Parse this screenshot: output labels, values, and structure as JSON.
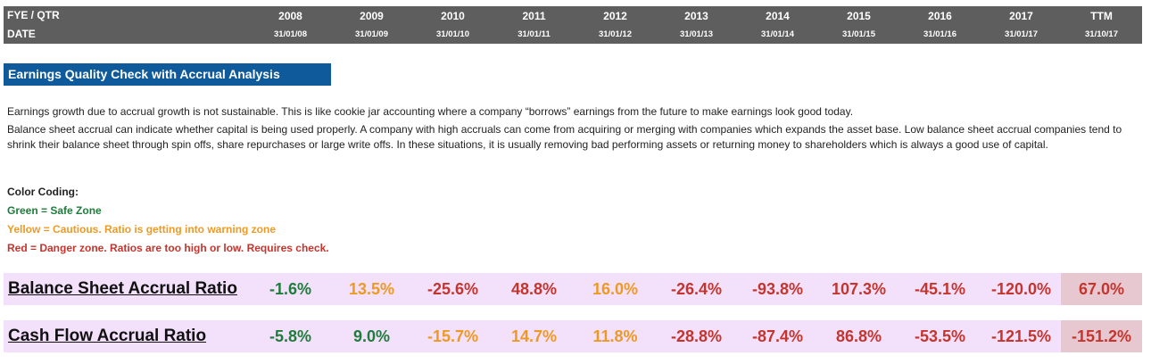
{
  "header": {
    "row1_label": "FYE / QTR",
    "row2_label": "DATE",
    "years": [
      "2008",
      "2009",
      "2010",
      "2011",
      "2012",
      "2013",
      "2014",
      "2015",
      "2016",
      "2017",
      "TTM"
    ],
    "dates": [
      "31/01/08",
      "31/01/09",
      "31/01/10",
      "31/01/11",
      "31/01/12",
      "31/01/13",
      "31/01/14",
      "31/01/15",
      "31/01/16",
      "31/01/17",
      "31/10/17"
    ]
  },
  "section": {
    "title": "Earnings Quality Check with Accrual Analysis",
    "paragraph1": "Earnings growth due to accrual growth is not sustainable. This is like cookie jar accounting where a company “borrows” earnings from the future to make earnings look good today.",
    "paragraph2": "Balance sheet accrual can indicate whether capital is being used properly. A company with high accruals can come from acquiring or merging with companies which expands the asset base. Low balance sheet accrual companies tend to shrink their balance sheet through spin offs, share repurchases or large write offs. In these situations, it is usually removing bad performing assets or returning money to shareholders which is always a good use of capital."
  },
  "legend": {
    "title": "Color Coding:",
    "green": "Green = Safe Zone",
    "yellow": "Yellow = Cautious. Ratio is getting into warning zone",
    "red": "Red = Danger zone. Ratios are too high or low. Requires check."
  },
  "colors": {
    "green": "#1e7d3a",
    "yellow": "#ee9a22",
    "red": "#c4352d",
    "header_bg": "#5e5e5e",
    "title_bg": "#0f5a9a",
    "row_bg": "#f3e0fb",
    "ttm_bg": "#e8c8d0"
  },
  "ratios": [
    {
      "label": "Balance Sheet Accrual Ratio",
      "values": [
        "-1.6%",
        "13.5%",
        "-25.6%",
        "48.8%",
        "16.0%",
        "-26.4%",
        "-93.8%",
        "107.3%",
        "-45.1%",
        "-120.0%",
        "67.0%"
      ],
      "zones": [
        "green",
        "yellow",
        "red",
        "red",
        "yellow",
        "red",
        "red",
        "red",
        "red",
        "red",
        "red"
      ]
    },
    {
      "label": "Cash Flow Accrual Ratio",
      "values": [
        "-5.8%",
        "9.0%",
        "-15.7%",
        "14.7%",
        "11.8%",
        "-28.8%",
        "-87.4%",
        "86.8%",
        "-53.5%",
        "-121.5%",
        "-151.2%"
      ],
      "zones": [
        "green",
        "green",
        "yellow",
        "yellow",
        "yellow",
        "red",
        "red",
        "red",
        "red",
        "red",
        "red"
      ]
    }
  ]
}
